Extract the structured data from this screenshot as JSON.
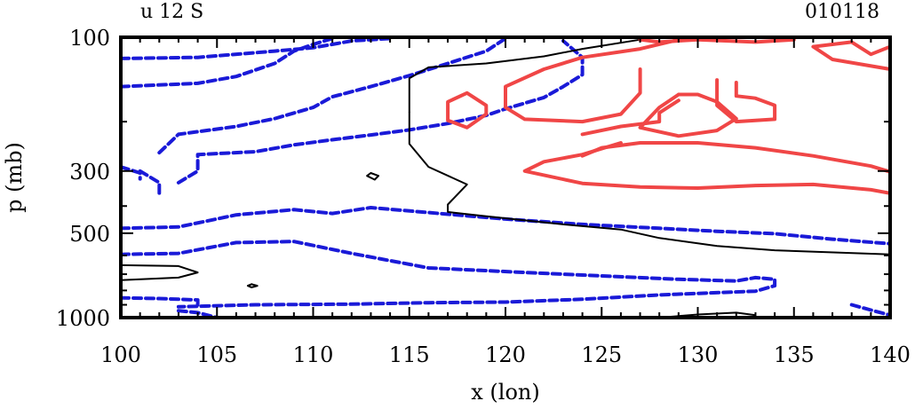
{
  "chart_data": {
    "type": "contour",
    "title_left": "u 12 S",
    "title_right": "010118",
    "xlabel": "x (lon)",
    "ylabel": "p (mb)",
    "xlim": [
      100,
      140
    ],
    "ylim": [
      100,
      1000
    ],
    "y_scale": "log",
    "y_inverted": true,
    "x_ticks": [
      100,
      105,
      110,
      115,
      120,
      125,
      130,
      135,
      140
    ],
    "y_ticks": [
      100,
      300,
      500,
      1000
    ],
    "colors": {
      "positive": "#f04646",
      "negative": "#1a1ad8",
      "zero": "#000000"
    },
    "contours": [
      {
        "kind": "negative",
        "pts": [
          [
            100,
            119
          ],
          [
            104,
            118
          ],
          [
            108,
            112
          ],
          [
            110,
            109
          ],
          [
            112,
            103
          ],
          [
            114,
            101
          ]
        ]
      },
      {
        "kind": "negative",
        "pts": [
          [
            100,
            150
          ],
          [
            104,
            146
          ],
          [
            106,
            138
          ],
          [
            108,
            124
          ],
          [
            109,
            112
          ],
          [
            110,
            106
          ],
          [
            111,
            101
          ]
        ]
      },
      {
        "kind": "negative",
        "pts": [
          [
            102,
            258
          ],
          [
            103,
            222
          ],
          [
            106,
            208
          ],
          [
            108,
            195
          ],
          [
            110,
            178
          ],
          [
            111,
            163
          ],
          [
            113,
            150
          ],
          [
            115,
            137
          ],
          [
            117,
            124
          ],
          [
            119,
            112
          ],
          [
            120,
            101
          ]
        ]
      },
      {
        "kind": "negative",
        "pts": [
          [
            103,
            330
          ],
          [
            104,
            300
          ],
          [
            104,
            262
          ],
          [
            107,
            256
          ],
          [
            109,
            242
          ],
          [
            111,
            232
          ],
          [
            113,
            223
          ],
          [
            115,
            214
          ],
          [
            117,
            203
          ],
          [
            119,
            190
          ],
          [
            120,
            180
          ],
          [
            122,
            164
          ],
          [
            123,
            150
          ],
          [
            124,
            136
          ],
          [
            124,
            118
          ],
          [
            123,
            103
          ]
        ]
      },
      {
        "kind": "negative",
        "pts": [
          [
            100,
            480
          ],
          [
            103,
            475
          ],
          [
            106,
            430
          ],
          [
            109,
            412
          ],
          [
            111,
            425
          ],
          [
            113,
            405
          ],
          [
            116,
            422
          ],
          [
            120,
            445
          ],
          [
            124,
            465
          ],
          [
            128,
            480
          ],
          [
            131,
            492
          ],
          [
            134,
            502
          ],
          [
            137,
            525
          ],
          [
            140,
            545
          ]
        ]
      },
      {
        "kind": "negative",
        "pts": [
          [
            100,
            595
          ],
          [
            103,
            590
          ],
          [
            106,
            540
          ],
          [
            109,
            535
          ],
          [
            112,
            590
          ],
          [
            116,
            665
          ],
          [
            121,
            690
          ],
          [
            125,
            710
          ],
          [
            129,
            730
          ],
          [
            132,
            740
          ],
          [
            133,
            720
          ],
          [
            134,
            730
          ],
          [
            134,
            770
          ],
          [
            133,
            805
          ],
          [
            128,
            830
          ],
          [
            124,
            860
          ],
          [
            120,
            880
          ],
          [
            116,
            885
          ],
          [
            112,
            895
          ],
          [
            107,
            900
          ],
          [
            103,
            915
          ]
        ]
      },
      {
        "kind": "negative",
        "pts": [
          [
            100,
            850
          ],
          [
            102,
            855
          ],
          [
            104,
            865
          ],
          [
            104,
            900
          ]
        ]
      },
      {
        "kind": "negative",
        "pts": [
          [
            103,
            945
          ],
          [
            104,
            960
          ],
          [
            105,
            1000
          ]
        ]
      },
      {
        "kind": "negative",
        "pts": [
          [
            138,
            900
          ],
          [
            139,
            940
          ],
          [
            140,
            980
          ]
        ]
      },
      {
        "kind": "negative",
        "pts": [
          [
            101,
            300
          ],
          [
            102,
            330
          ],
          [
            102,
            370
          ]
        ]
      },
      {
        "kind": "negative",
        "pts": [
          [
            100,
            290
          ],
          [
            101,
            305
          ],
          [
            101,
            320
          ]
        ]
      },
      {
        "kind": "zero",
        "pts": [
          [
            100,
            650
          ],
          [
            103,
            655
          ],
          [
            104,
            690
          ],
          [
            103,
            720
          ],
          [
            100,
            735
          ]
        ]
      },
      {
        "kind": "zero",
        "pts": [
          [
            115,
            185
          ],
          [
            115,
            140
          ],
          [
            116,
            128
          ],
          [
            119,
            124
          ],
          [
            122,
            117
          ],
          [
            124,
            110
          ],
          [
            127,
            102
          ]
        ]
      },
      {
        "kind": "zero",
        "pts": [
          [
            140,
            595
          ],
          [
            134,
            575
          ],
          [
            131,
            555
          ],
          [
            128,
            520
          ],
          [
            126,
            485
          ],
          [
            123,
            465
          ],
          [
            119,
            435
          ],
          [
            117,
            420
          ],
          [
            117,
            395
          ],
          [
            118,
            335
          ],
          [
            116,
            290
          ],
          [
            115,
            240
          ],
          [
            115,
            185
          ]
        ]
      },
      {
        "kind": "zero",
        "pts": [
          [
            128,
            1000
          ],
          [
            130,
            975
          ],
          [
            132,
            960
          ],
          [
            133,
            980
          ]
        ]
      },
      {
        "kind": "positive",
        "pts": [
          [
            127,
            130
          ],
          [
            127,
            158
          ],
          [
            126,
            188
          ],
          [
            124,
            200
          ],
          [
            121,
            196
          ],
          [
            120,
            178
          ],
          [
            120,
            150
          ],
          [
            122,
            130
          ],
          [
            124,
            118
          ],
          [
            127,
            110
          ],
          [
            129,
            102
          ]
        ]
      },
      {
        "kind": "positive",
        "pts": [
          [
            119,
            188
          ],
          [
            118,
            210
          ],
          [
            117,
            198
          ],
          [
            117,
            170
          ],
          [
            118,
            158
          ],
          [
            119,
            175
          ],
          [
            119,
            188
          ]
        ]
      },
      {
        "kind": "positive",
        "pts": [
          [
            126,
            238
          ],
          [
            124,
            262
          ],
          [
            122,
            278
          ],
          [
            121,
            300
          ],
          [
            124,
            332
          ],
          [
            127,
            342
          ],
          [
            130,
            345
          ],
          [
            133,
            338
          ],
          [
            136,
            335
          ],
          [
            139,
            350
          ],
          [
            140,
            360
          ]
        ]
      },
      {
        "kind": "positive",
        "pts": [
          [
            129,
            160
          ],
          [
            128,
            178
          ],
          [
            127,
            210
          ],
          [
            129,
            225
          ],
          [
            131,
            215
          ],
          [
            132,
            195
          ],
          [
            131,
            170
          ],
          [
            130,
            160
          ],
          [
            129,
            160
          ]
        ]
      },
      {
        "kind": "positive",
        "pts": [
          [
            131,
            142
          ],
          [
            131,
            175
          ],
          [
            132,
            200
          ],
          [
            134,
            196
          ],
          [
            134,
            175
          ],
          [
            133,
            165
          ],
          [
            132,
            162
          ],
          [
            132,
            145
          ]
        ]
      },
      {
        "kind": "positive",
        "pts": [
          [
            140,
            130
          ],
          [
            137,
            120
          ],
          [
            136,
            108
          ],
          [
            138,
            104
          ],
          [
            139,
            115
          ],
          [
            140,
            108
          ]
        ]
      },
      {
        "kind": "positive",
        "pts": [
          [
            124,
            265
          ],
          [
            125,
            248
          ],
          [
            127,
            238
          ],
          [
            130,
            238
          ],
          [
            133,
            248
          ],
          [
            136,
            265
          ],
          [
            139,
            288
          ],
          [
            140,
            302
          ]
        ]
      },
      {
        "kind": "positive",
        "pts": [
          [
            124,
            222
          ],
          [
            126,
            208
          ],
          [
            128,
            200
          ],
          [
            128,
            186
          ],
          [
            129,
            168
          ]
        ]
      },
      {
        "kind": "positive",
        "pts": [
          [
            127,
            102
          ],
          [
            128,
            104
          ],
          [
            130,
            102
          ],
          [
            133,
            104
          ],
          [
            135,
            102
          ]
        ]
      },
      {
        "kind": "zero",
        "pts": [
          [
            113,
            305
          ],
          [
            113.4,
            312
          ],
          [
            113.2,
            322
          ],
          [
            112.8,
            312
          ],
          [
            113,
            305
          ]
        ]
      },
      {
        "kind": "zero",
        "pts": [
          [
            106.8,
            760
          ],
          [
            107.1,
            770
          ],
          [
            106.8,
            780
          ],
          [
            106.6,
            770
          ],
          [
            106.8,
            760
          ]
        ]
      }
    ]
  }
}
